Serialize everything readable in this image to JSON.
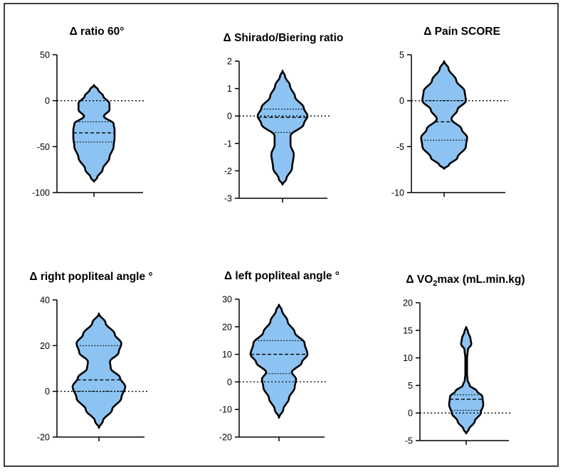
{
  "figure": {
    "background": "#ffffff",
    "border_color": "#000000"
  },
  "style": {
    "violin_fill": "#8cc3f2",
    "violin_stroke": "#000000",
    "reference_line": "#000000"
  },
  "chart_data": [
    {
      "type": "violin",
      "title": "Δ ratio 60°",
      "title_parts": [
        {
          "text": "Δ ratio 60°"
        }
      ],
      "ylim": [
        -100,
        50
      ],
      "yticks": [
        50,
        0,
        -50,
        -100
      ],
      "ytick_labels": [
        "50",
        "0",
        "-50",
        "-100"
      ],
      "reference_line": 0,
      "lines": {
        "median": -35,
        "q1": -45,
        "q3": -23
      },
      "density": [
        [
          -88,
          0
        ],
        [
          -84,
          0.15
        ],
        [
          -75,
          0.42
        ],
        [
          -62,
          0.75
        ],
        [
          -50,
          0.95
        ],
        [
          -40,
          1
        ],
        [
          -32,
          1
        ],
        [
          -25,
          0.95
        ],
        [
          -17,
          0.48
        ],
        [
          -10,
          0.75
        ],
        [
          -3,
          0.75
        ],
        [
          5,
          0.45
        ],
        [
          12,
          0.2
        ],
        [
          17,
          0
        ]
      ]
    },
    {
      "type": "violin",
      "title": "Δ Shirado/Biering ratio",
      "title_parts": [
        {
          "text": "Δ Shirado/Biering ratio"
        }
      ],
      "ylim": [
        -3,
        2
      ],
      "yticks": [
        2,
        1,
        0,
        -1,
        -2,
        -3
      ],
      "ytick_labels": [
        "2",
        "1",
        "0",
        "-1",
        "-2",
        "-3"
      ],
      "reference_line": 0,
      "lines": {
        "median": -0.05,
        "q1": -0.6,
        "q3": 0.25
      },
      "density": [
        [
          -2.5,
          0
        ],
        [
          -2.3,
          0.15
        ],
        [
          -1.9,
          0.38
        ],
        [
          -1.4,
          0.45
        ],
        [
          -1.05,
          0.32
        ],
        [
          -0.72,
          0.32
        ],
        [
          -0.3,
          0.85
        ],
        [
          0,
          1
        ],
        [
          0.3,
          0.85
        ],
        [
          0.7,
          0.5
        ],
        [
          1.1,
          0.3
        ],
        [
          1.45,
          0.1
        ],
        [
          1.65,
          0
        ]
      ]
    },
    {
      "type": "violin",
      "title": "Δ Pain SCORE",
      "title_parts": [
        {
          "text": "Δ Pain SCORE"
        }
      ],
      "ylim": [
        -10,
        5
      ],
      "yticks": [
        5,
        0,
        -5,
        -10
      ],
      "ytick_labels": [
        "5",
        "0",
        "-5",
        "-10"
      ],
      "reference_line": 0,
      "lines": {
        "median": -2.3,
        "q1": -4.3,
        "q3": 0
      },
      "density": [
        [
          -7.4,
          0
        ],
        [
          -7,
          0.2
        ],
        [
          -6.2,
          0.55
        ],
        [
          -5,
          0.9
        ],
        [
          -4,
          0.95
        ],
        [
          -3.1,
          0.72
        ],
        [
          -2,
          0.3
        ],
        [
          -1,
          0.55
        ],
        [
          0,
          0.9
        ],
        [
          1,
          0.85
        ],
        [
          2.2,
          0.5
        ],
        [
          3.5,
          0.18
        ],
        [
          4.3,
          0
        ]
      ]
    },
    {
      "type": "violin",
      "title": "Δ right popliteal angle °",
      "title_parts": [
        {
          "text": "Δ right popliteal angle °"
        }
      ],
      "ylim": [
        -20,
        40
      ],
      "yticks": [
        40,
        20,
        0,
        -20
      ],
      "ytick_labels": [
        "40",
        "20",
        "0",
        "-20"
      ],
      "reference_line": 0,
      "lines": {
        "median": 5,
        "q1": 0,
        "q3": 20
      },
      "density": [
        [
          -16,
          0
        ],
        [
          -13,
          0.15
        ],
        [
          -8,
          0.5
        ],
        [
          -3,
          0.85
        ],
        [
          2,
          1
        ],
        [
          6,
          0.8
        ],
        [
          10,
          0.45
        ],
        [
          13,
          0.42
        ],
        [
          17,
          0.75
        ],
        [
          21,
          0.85
        ],
        [
          25,
          0.6
        ],
        [
          30,
          0.25
        ],
        [
          34,
          0
        ]
      ]
    },
    {
      "type": "violin",
      "title": "Δ left popliteal angle °",
      "title_parts": [
        {
          "text": "Δ left popliteal angle °"
        }
      ],
      "ylim": [
        -20,
        30
      ],
      "yticks": [
        30,
        20,
        10,
        0,
        -10,
        -20
      ],
      "ytick_labels": [
        "30",
        "20",
        "10",
        "0",
        "-10",
        "-20"
      ],
      "reference_line": 0,
      "lines": {
        "median": 10,
        "q1": 3,
        "q3": 15
      },
      "density": [
        [
          -13,
          0
        ],
        [
          -10,
          0.15
        ],
        [
          -6,
          0.35
        ],
        [
          -2,
          0.55
        ],
        [
          1,
          0.6
        ],
        [
          3.5,
          0.45
        ],
        [
          7,
          0.8
        ],
        [
          10,
          1
        ],
        [
          14,
          0.9
        ],
        [
          18,
          0.55
        ],
        [
          22,
          0.3
        ],
        [
          26,
          0.1
        ],
        [
          28,
          0
        ]
      ]
    },
    {
      "type": "violin",
      "title": "Δ VO2max (mL.min.kg)",
      "title_parts": [
        {
          "text": "Δ VO"
        },
        {
          "text": "2",
          "sub": true
        },
        {
          "text": "max (mL.min.kg)"
        }
      ],
      "ylim": [
        -5,
        20
      ],
      "yticks": [
        20,
        15,
        10,
        5,
        0,
        -5
      ],
      "ytick_labels": [
        "20",
        "15",
        "10",
        "5",
        "0",
        "-5"
      ],
      "reference_line": 0,
      "lines": {
        "median": 2.5,
        "q1": 0.5,
        "q3": 3.3
      },
      "density": [
        [
          -3.7,
          0
        ],
        [
          -3,
          0.15
        ],
        [
          -1.5,
          0.5
        ],
        [
          0,
          0.85
        ],
        [
          1.5,
          1
        ],
        [
          3,
          0.95
        ],
        [
          4,
          0.62
        ],
        [
          5,
          0.2
        ],
        [
          6,
          0.08
        ],
        [
          7,
          0.05
        ],
        [
          10,
          0.05
        ],
        [
          11.5,
          0.1
        ],
        [
          12.5,
          0.3
        ],
        [
          13.5,
          0.25
        ],
        [
          14.8,
          0.1
        ],
        [
          15.6,
          0
        ]
      ]
    }
  ]
}
